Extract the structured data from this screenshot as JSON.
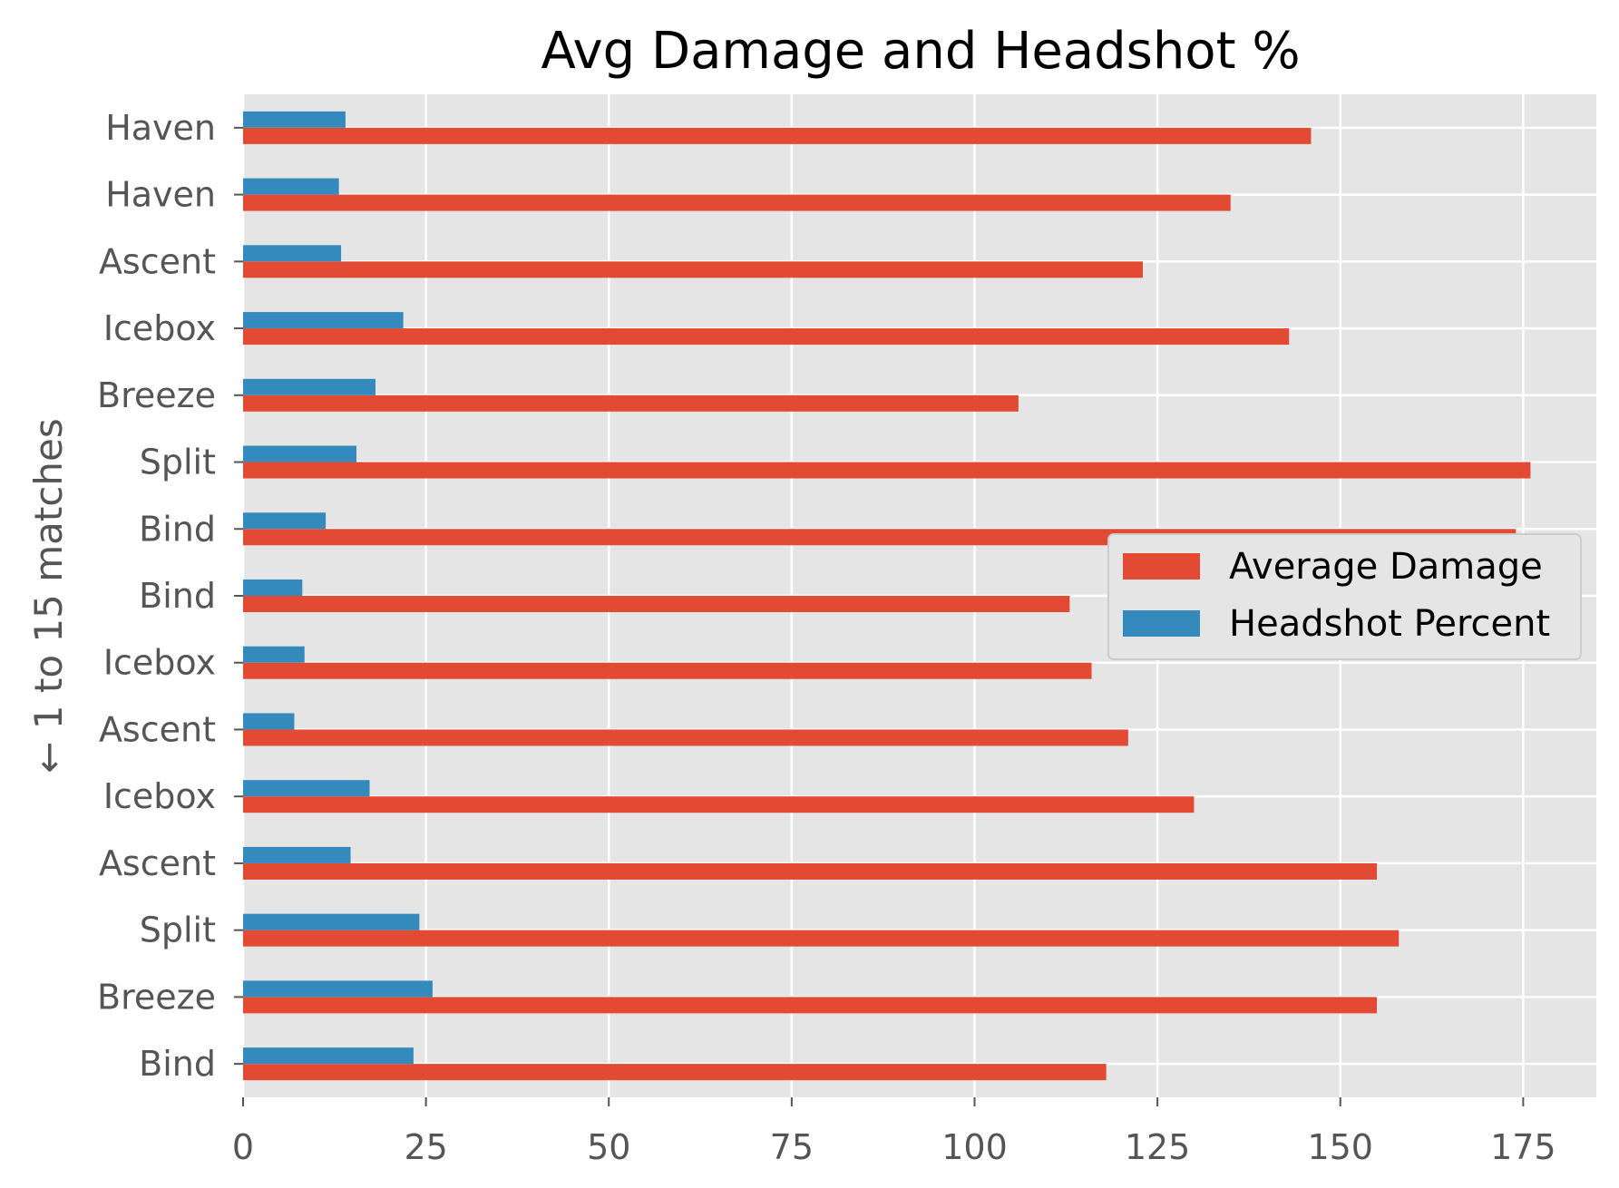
{
  "chart_data": {
    "type": "bar",
    "orientation": "horizontal",
    "title": "Avg Damage and Headshot %",
    "xlabel": "",
    "ylabel": "← 1 to 15 matches",
    "xlim": [
      0,
      185
    ],
    "x_ticks": [
      0,
      25,
      50,
      75,
      100,
      125,
      150,
      175
    ],
    "grid": true,
    "legend_placement": "center-right",
    "categories": [
      "Bind",
      "Breeze",
      "Split",
      "Ascent",
      "Icebox",
      "Ascent",
      "Icebox",
      "Bind",
      "Bind",
      "Split",
      "Breeze",
      "Icebox",
      "Ascent",
      "Haven",
      "Haven"
    ],
    "series": [
      {
        "name": "Average Damage",
        "color": "#E24A33",
        "values": [
          118,
          155,
          158,
          155,
          130,
          121,
          116,
          113,
          174,
          176,
          106,
          143,
          123,
          135,
          146
        ]
      },
      {
        "name": "Headshot Percent",
        "color": "#348ABD",
        "values": [
          23.3,
          25.9,
          24.1,
          14.7,
          17.3,
          7.0,
          8.4,
          8.1,
          11.3,
          15.5,
          18.1,
          21.9,
          13.4,
          13.1,
          14.0
        ]
      }
    ]
  }
}
